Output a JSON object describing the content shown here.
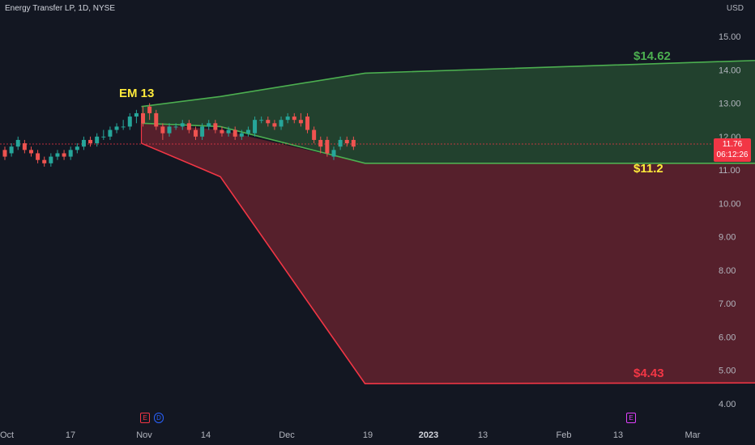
{
  "header": {
    "symbol": "Energy Transfer LP, 1D, NYSE",
    "currency": "USD"
  },
  "price_tag": {
    "price": "11.76",
    "countdown": "06:12:26"
  },
  "events": [
    {
      "label": "E",
      "color": "#f23645"
    },
    {
      "label": "D",
      "color": "#2962ff"
    },
    {
      "label": "E",
      "color": "#e040fb"
    }
  ],
  "colors": {
    "up": "#26a69a",
    "down": "#ef5350",
    "green_zone": "#4caf50",
    "red_zone": "#f23645",
    "yellow": "#ffeb3b"
  },
  "chart_data": {
    "type": "line",
    "title": "",
    "ylim": [
      3.6,
      15.4
    ],
    "y_ticks": [
      "15.00",
      "14.00",
      "13.00",
      "12.00",
      "11.00",
      "10.00",
      "9.00",
      "8.00",
      "7.00",
      "6.00",
      "5.00",
      "4.00"
    ],
    "x_ticks": [
      "Oct",
      "17",
      "Nov",
      "14",
      "Dec",
      "19",
      "2023",
      "13",
      "Feb",
      "13",
      "Mar"
    ],
    "grid": false,
    "annotations": [
      {
        "text": "EM 13",
        "color": "#ffeb3b"
      },
      {
        "text": "$14.62",
        "color": "#4caf50"
      },
      {
        "text": "$11.2",
        "color": "#ffeb3b"
      },
      {
        "text": "$4.43",
        "color": "#f23645"
      }
    ],
    "current_price": 11.76,
    "candles": [
      [
        11.6,
        11.4,
        11.7,
        11.3
      ],
      [
        11.5,
        11.7,
        11.8,
        11.4
      ],
      [
        11.7,
        11.9,
        12.0,
        11.6
      ],
      [
        11.8,
        11.6,
        11.9,
        11.5
      ],
      [
        11.6,
        11.5,
        11.7,
        11.4
      ],
      [
        11.5,
        11.3,
        11.6,
        11.2
      ],
      [
        11.3,
        11.2,
        11.4,
        11.1
      ],
      [
        11.2,
        11.4,
        11.5,
        11.1
      ],
      [
        11.4,
        11.5,
        11.6,
        11.3
      ],
      [
        11.5,
        11.4,
        11.6,
        11.3
      ],
      [
        11.4,
        11.6,
        11.7,
        11.3
      ],
      [
        11.6,
        11.7,
        11.8,
        11.5
      ],
      [
        11.7,
        11.9,
        12.0,
        11.6
      ],
      [
        11.9,
        11.8,
        12.0,
        11.7
      ],
      [
        11.8,
        12.0,
        12.1,
        11.7
      ],
      [
        12.0,
        12.0,
        12.2,
        11.9
      ],
      [
        12.0,
        12.2,
        12.3,
        11.9
      ],
      [
        12.2,
        12.3,
        12.4,
        12.1
      ],
      [
        12.3,
        12.3,
        12.5,
        12.2
      ],
      [
        12.3,
        12.6,
        12.7,
        12.2
      ],
      [
        12.6,
        12.7,
        12.8,
        12.4
      ],
      [
        12.7,
        12.4,
        12.9,
        12.3
      ],
      [
        12.9,
        12.7,
        13.0,
        12.5
      ],
      [
        12.7,
        12.3,
        12.8,
        12.2
      ],
      [
        12.3,
        12.1,
        12.4,
        11.9
      ],
      [
        12.1,
        12.3,
        12.4,
        12.0
      ],
      [
        12.3,
        12.3,
        12.4,
        12.2
      ],
      [
        12.3,
        12.4,
        12.5,
        12.2
      ],
      [
        12.4,
        12.2,
        12.5,
        12.1
      ],
      [
        12.2,
        12.0,
        12.3,
        11.9
      ],
      [
        12.0,
        12.3,
        12.4,
        11.9
      ],
      [
        12.3,
        12.4,
        12.5,
        12.2
      ],
      [
        12.4,
        12.2,
        12.5,
        12.1
      ],
      [
        12.2,
        12.1,
        12.3,
        12.0
      ],
      [
        12.1,
        12.2,
        12.3,
        12.0
      ],
      [
        12.2,
        12.0,
        12.3,
        11.9
      ],
      [
        12.0,
        12.1,
        12.2,
        11.9
      ],
      [
        12.1,
        12.2,
        12.3,
        12.0
      ],
      [
        12.1,
        12.5,
        12.6,
        12.0
      ],
      [
        12.5,
        12.5,
        12.6,
        12.4
      ],
      [
        12.5,
        12.4,
        12.6,
        12.3
      ],
      [
        12.4,
        12.3,
        12.5,
        12.2
      ],
      [
        12.3,
        12.5,
        12.6,
        12.2
      ],
      [
        12.5,
        12.6,
        12.7,
        12.4
      ],
      [
        12.6,
        12.5,
        12.7,
        12.4
      ],
      [
        12.5,
        12.4,
        12.7,
        12.3
      ],
      [
        12.6,
        12.2,
        12.7,
        12.1
      ],
      [
        12.2,
        11.9,
        12.3,
        11.8
      ],
      [
        11.9,
        11.7,
        12.0,
        11.5
      ],
      [
        11.9,
        11.5,
        12.0,
        11.4
      ],
      [
        11.4,
        11.6,
        11.7,
        11.3
      ],
      [
        11.7,
        11.9,
        12.0,
        11.6
      ],
      [
        11.9,
        11.8,
        12.0,
        11.7
      ],
      [
        11.9,
        11.7,
        12.0,
        11.6
      ]
    ],
    "series": [
      {
        "name": "",
        "points": [
          [
            21,
            12.9
          ],
          [
            33,
            13.2
          ],
          [
            55,
            13.9
          ],
          [
            180,
            14.7
          ]
        ]
      },
      {
        "name": "",
        "points": [
          [
            21,
            12.4
          ],
          [
            33,
            12.3
          ],
          [
            55,
            11.2
          ],
          [
            180,
            11.2
          ]
        ]
      },
      {
        "name": "",
        "points": [
          [
            21,
            12.4
          ],
          [
            33,
            12.2
          ],
          [
            55,
            11.2
          ],
          [
            180,
            11.2
          ]
        ]
      },
      {
        "name": "",
        "points": [
          [
            21,
            11.8
          ],
          [
            33,
            10.8
          ],
          [
            55,
            4.6
          ],
          [
            180,
            4.65
          ]
        ]
      }
    ]
  }
}
